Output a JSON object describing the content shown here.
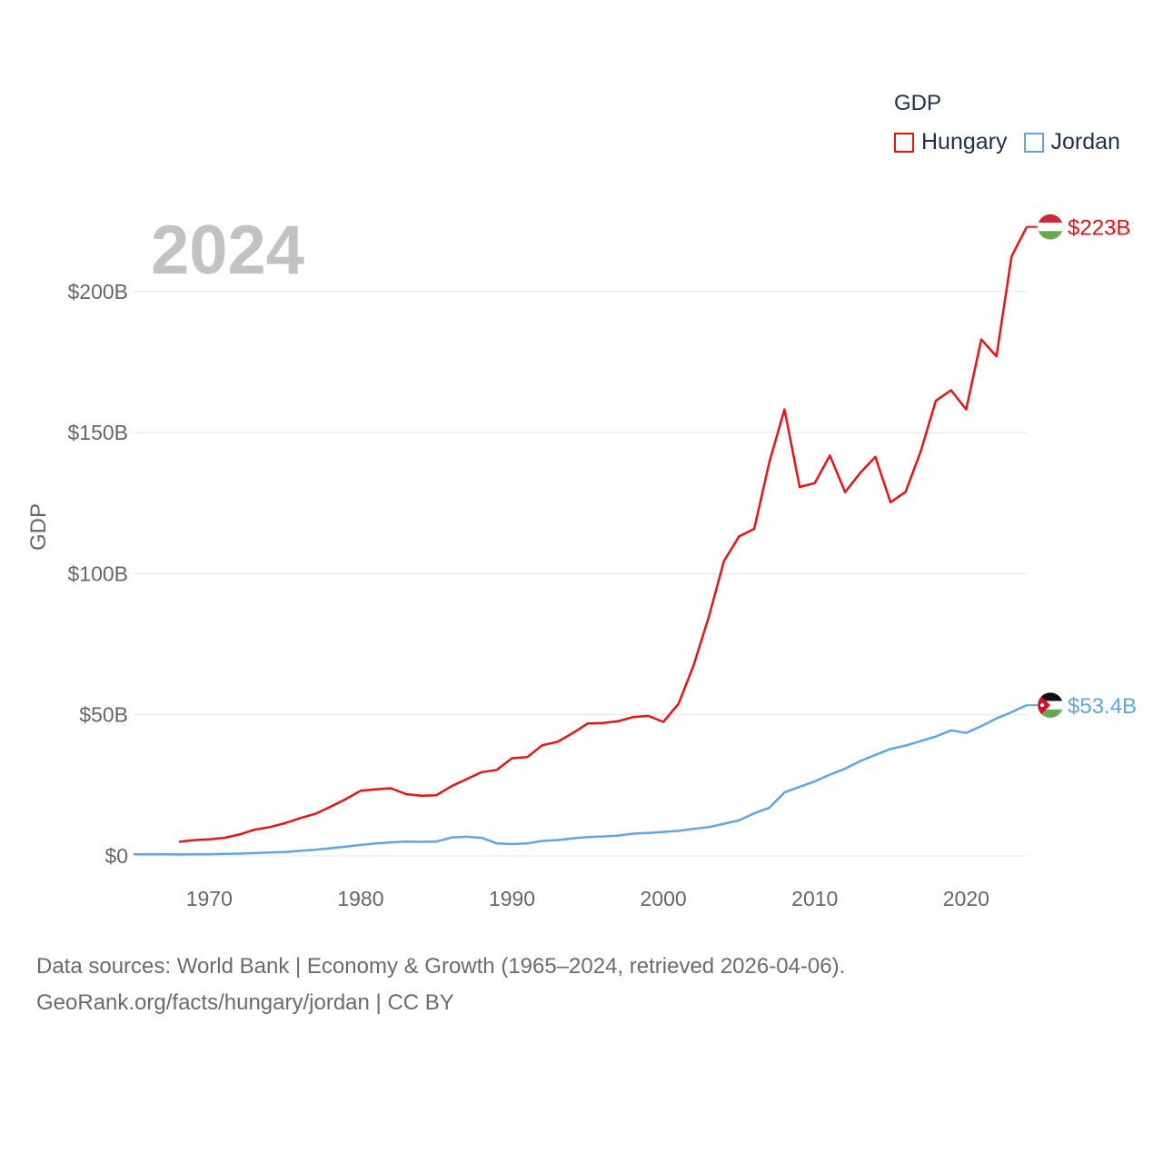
{
  "chart_data": {
    "type": "line",
    "ylabel": "GDP",
    "ylim": [
      0,
      223
    ],
    "xlim": [
      1965,
      2024
    ],
    "y_ticks": [
      {
        "value": 0,
        "label": "$0"
      },
      {
        "value": 50,
        "label": "$50B"
      },
      {
        "value": 100,
        "label": "$100B"
      },
      {
        "value": 150,
        "label": "$150B"
      },
      {
        "value": 200,
        "label": "$200B"
      }
    ],
    "x_ticks": [
      {
        "value": 1970,
        "label": "1970"
      },
      {
        "value": 1980,
        "label": "1980"
      },
      {
        "value": 1990,
        "label": "1990"
      },
      {
        "value": 2000,
        "label": "2000"
      },
      {
        "value": 2010,
        "label": "2010"
      },
      {
        "value": 2020,
        "label": "2020"
      }
    ],
    "year_label": "2024",
    "legend_title": "GDP",
    "series": [
      {
        "name": "Hungary",
        "color": "#ee1111",
        "end_label": "$223B",
        "flag": "hungary-flag-icon",
        "x": [
          1968,
          1969,
          1970,
          1971,
          1972,
          1973,
          1974,
          1975,
          1976,
          1977,
          1978,
          1979,
          1980,
          1981,
          1982,
          1983,
          1984,
          1985,
          1986,
          1987,
          1988,
          1989,
          1990,
          1991,
          1992,
          1993,
          1994,
          1995,
          1996,
          1997,
          1998,
          1999,
          2000,
          2001,
          2002,
          2003,
          2004,
          2005,
          2006,
          2007,
          2008,
          2009,
          2010,
          2011,
          2012,
          2013,
          2014,
          2015,
          2016,
          2017,
          2018,
          2019,
          2020,
          2021,
          2022,
          2023,
          2024
        ],
        "values": [
          5.0,
          5.6,
          5.9,
          6.4,
          7.6,
          9.3,
          10.2,
          11.6,
          13.4,
          14.9,
          17.4,
          20.1,
          23.1,
          23.6,
          24.0,
          21.9,
          21.3,
          21.5,
          24.7,
          27.2,
          29.7,
          30.5,
          34.6,
          35.0,
          39.2,
          40.4,
          43.5,
          46.9,
          47.1,
          47.7,
          49.2,
          49.6,
          47.5,
          53.9,
          67.6,
          84.7,
          104.5,
          113.2,
          115.9,
          139.6,
          158.2,
          130.7,
          132.1,
          141.9,
          128.9,
          135.7,
          141.4,
          125.3,
          129.0,
          143.4,
          161.3,
          165.0,
          158.2,
          183.0,
          177.0,
          212.4,
          222.9
        ]
      },
      {
        "name": "Jordan",
        "color": "#5ea6e6",
        "end_label": "$53.4B",
        "flag": "jordan-flag-icon",
        "x": [
          1965,
          1966,
          1967,
          1968,
          1969,
          1970,
          1971,
          1972,
          1973,
          1974,
          1975,
          1976,
          1977,
          1978,
          1979,
          1980,
          1981,
          1982,
          1983,
          1984,
          1985,
          1986,
          1987,
          1988,
          1989,
          1990,
          1991,
          1992,
          1993,
          1994,
          1995,
          1996,
          1997,
          1998,
          1999,
          2000,
          2001,
          2002,
          2003,
          2004,
          2005,
          2006,
          2007,
          2008,
          2009,
          2010,
          2011,
          2012,
          2013,
          2014,
          2015,
          2016,
          2017,
          2018,
          2019,
          2020,
          2021,
          2022,
          2023,
          2024
        ],
        "values": [
          0.6,
          0.6,
          0.6,
          0.5,
          0.6,
          0.6,
          0.7,
          0.8,
          1.0,
          1.2,
          1.4,
          1.8,
          2.2,
          2.7,
          3.3,
          3.9,
          4.4,
          4.8,
          5.1,
          5.0,
          5.1,
          6.5,
          6.8,
          6.4,
          4.4,
          4.2,
          4.4,
          5.3,
          5.6,
          6.2,
          6.7,
          6.9,
          7.2,
          7.9,
          8.1,
          8.5,
          8.9,
          9.6,
          10.2,
          11.4,
          12.6,
          15.1,
          17.1,
          22.5,
          24.5,
          26.4,
          28.8,
          30.9,
          33.6,
          35.8,
          37.9,
          39.1,
          40.7,
          42.3,
          44.5,
          43.6,
          46.0,
          48.7,
          50.9,
          53.4
        ]
      }
    ]
  },
  "footer": {
    "line1": "Data sources: World Bank | Economy & Growth (1965–2024, retrieved 2026-04-06).",
    "line2": "GeoRank.org/facts/hungary/jordan | CC BY"
  }
}
